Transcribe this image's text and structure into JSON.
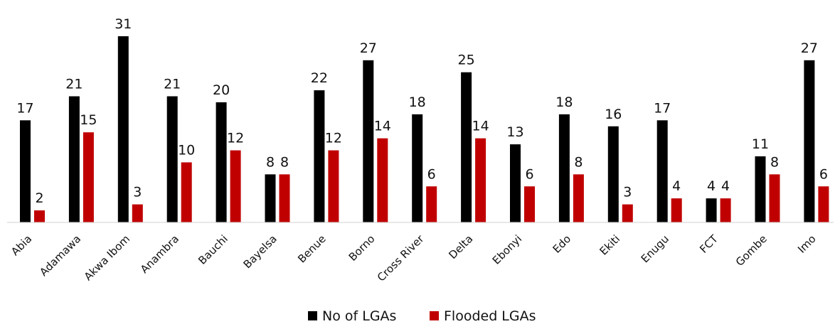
{
  "chart_data": {
    "type": "bar",
    "categories": [
      "Abia",
      "Adamawa",
      "Akwa Ibom",
      "Anambra",
      "Bauchi",
      "Bayelsa",
      "Benue",
      "Borno",
      "Cross River",
      "Delta",
      "Ebonyi",
      "Edo",
      "Ekiti",
      "Enugu",
      "FCT",
      "Gombe",
      "Imo"
    ],
    "series": [
      {
        "name": "No of LGAs",
        "color": "#000000",
        "values": [
          17,
          21,
          31,
          21,
          20,
          8,
          22,
          27,
          18,
          25,
          13,
          18,
          16,
          17,
          4,
          11,
          27
        ]
      },
      {
        "name": "Flooded LGAs",
        "color": "#c00000",
        "values": [
          2,
          15,
          3,
          10,
          12,
          8,
          12,
          14,
          6,
          14,
          6,
          8,
          3,
          4,
          4,
          8,
          6
        ]
      }
    ],
    "ylim": [
      0,
      31
    ],
    "grid": false,
    "legend_position": "bottom-center",
    "data_labels": true
  }
}
